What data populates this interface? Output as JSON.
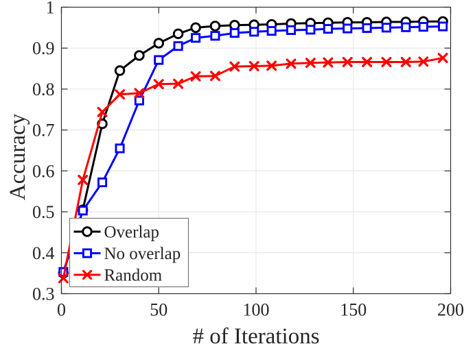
{
  "figure": {
    "background": "#ffffff",
    "plot_border_color": "#3a3a3a",
    "grid_color": "#e8e8e8",
    "text_color": "#262626"
  },
  "chart_data": {
    "type": "line",
    "title": "",
    "xlabel": "# of Iterations",
    "ylabel": "Accuracy",
    "xlim": [
      0,
      200
    ],
    "ylim": [
      0.3,
      1.0
    ],
    "grid": true,
    "legend_position": "lower-left",
    "xticks": {
      "values": [
        0,
        50,
        100,
        150,
        200
      ],
      "labels": [
        "0",
        "50",
        "100",
        "150",
        "200"
      ]
    },
    "yticks": {
      "values": [
        0.3,
        0.4,
        0.5,
        0.6,
        0.7,
        0.8,
        0.9,
        1.0
      ],
      "labels": [
        "0.3",
        "0.4",
        "0.5",
        "0.6",
        "0.7",
        "0.8",
        "0.9",
        "1"
      ]
    },
    "x": [
      1,
      11,
      21,
      30,
      40,
      50,
      60,
      69,
      79,
      89,
      99,
      108,
      118,
      128,
      137,
      147,
      157,
      167,
      177,
      186,
      196
    ],
    "series": [
      {
        "name": "Overlap",
        "color": "#000000",
        "marker": "circle",
        "values": [
          0.35,
          0.505,
          0.715,
          0.845,
          0.882,
          0.912,
          0.935,
          0.95,
          0.954,
          0.956,
          0.957,
          0.958,
          0.96,
          0.961,
          0.962,
          0.963,
          0.963,
          0.964,
          0.964,
          0.965,
          0.965
        ]
      },
      {
        "name": "No overlap",
        "color": "#0000ff",
        "marker": "square",
        "values": [
          0.353,
          0.503,
          0.572,
          0.655,
          0.772,
          0.871,
          0.905,
          0.925,
          0.93,
          0.937,
          0.94,
          0.942,
          0.944,
          0.945,
          0.947,
          0.948,
          0.949,
          0.95,
          0.951,
          0.952,
          0.953
        ]
      },
      {
        "name": "Random",
        "color": "#ff0000",
        "marker": "x",
        "values": [
          0.338,
          0.578,
          0.744,
          0.787,
          0.79,
          0.812,
          0.813,
          0.831,
          0.832,
          0.855,
          0.856,
          0.857,
          0.862,
          0.864,
          0.865,
          0.866,
          0.866,
          0.866,
          0.866,
          0.867,
          0.876
        ]
      }
    ]
  }
}
